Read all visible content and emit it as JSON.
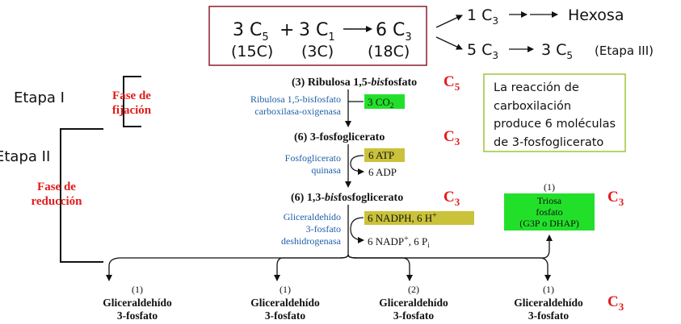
{
  "equation": {
    "term1_coef": "3 C",
    "term1_sub": "5",
    "term1_count": "(15C)",
    "plus": "+",
    "term2_coef": "3 C",
    "term2_sub": "1",
    "term2_count": "(3C)",
    "term3_coef": "6 C",
    "term3_sub": "3",
    "term3_count": "(18C)"
  },
  "outcomes": {
    "top_start": "1 C",
    "top_start_sub": "3",
    "top_end": "Hexosa",
    "bottom_start": "5 C",
    "bottom_start_sub": "3",
    "bottom_end": "3 C",
    "bottom_end_sub": "5",
    "bottom_note": "(Etapa III)"
  },
  "stages": {
    "stage1": "Etapa I",
    "stage2": "Etapa II"
  },
  "phases": {
    "fixation_line1": "Fase de",
    "fixation_line2": "fijación",
    "reduction_line1": "Fase de",
    "reduction_line2": "reducción"
  },
  "compounds": {
    "ribulose_a": "(3) Ribulosa 1,5-",
    "ribulose_b": "bis",
    "ribulose_c": "fosfato",
    "pg": "(6) 3-fosfoglicerato",
    "bpg_a": "(6) 1,3-",
    "bpg_b": "bis",
    "bpg_c": "fosfoglicerato"
  },
  "carbon_labels": {
    "c5": "C",
    "c5_sub": "5",
    "c3a": "C",
    "c3a_sub": "3",
    "c3b": "C",
    "c3b_sub": "3",
    "c3c": "C",
    "c3c_sub": "3",
    "c3d": "C",
    "c3d_sub": "3"
  },
  "enzymes": {
    "rubisco_line1": "Ribulosa 1,5-bisfosfato",
    "rubisco_line2": "carboxilasa-oxigenasa",
    "pgk_line1": "Fosfoglicerato",
    "pgk_line2": "quinasa",
    "gapdh_line1": "Gliceraldehído",
    "gapdh_line2": "3-fosfato",
    "gapdh_line3": "deshidrogenasa"
  },
  "reagents": {
    "co2": "3 CO",
    "co2_sub": "2",
    "atp": "6 ATP",
    "adp": "6 ADP",
    "nadph": "6 NADPH, 6 H",
    "nadp": "6 NADP",
    "pi": ", 6 P",
    "pi_sub": "i",
    "plus_sign": "+"
  },
  "note": {
    "line1": "La reacción de",
    "line2": "carboxilación",
    "line3": "produce 6 moléculas",
    "line4": "de 3-fosfoglicerato"
  },
  "triose": {
    "count": "(1)",
    "line1": "Triosa",
    "line2": "fosfato",
    "line3": "(G3P o DHAP)"
  },
  "products": [
    {
      "count": "(1)",
      "name": "Gliceraldehído",
      "suffix": "3-fosfato"
    },
    {
      "count": "(1)",
      "name": "Gliceraldehído",
      "suffix": "3-fosfato"
    },
    {
      "count": "(2)",
      "name": "Gliceraldehído",
      "suffix": "3-fosfato"
    },
    {
      "count": "(1)",
      "name": "Gliceraldehído",
      "suffix": "3-fosfato"
    }
  ],
  "colors": {
    "red": "#e31b1b",
    "blue": "#1f5fa8",
    "green_box": "#22e02a",
    "olive_box": "#c9c23a",
    "note_border": "#9bc53d",
    "eq_border": "#8a1f2b"
  }
}
